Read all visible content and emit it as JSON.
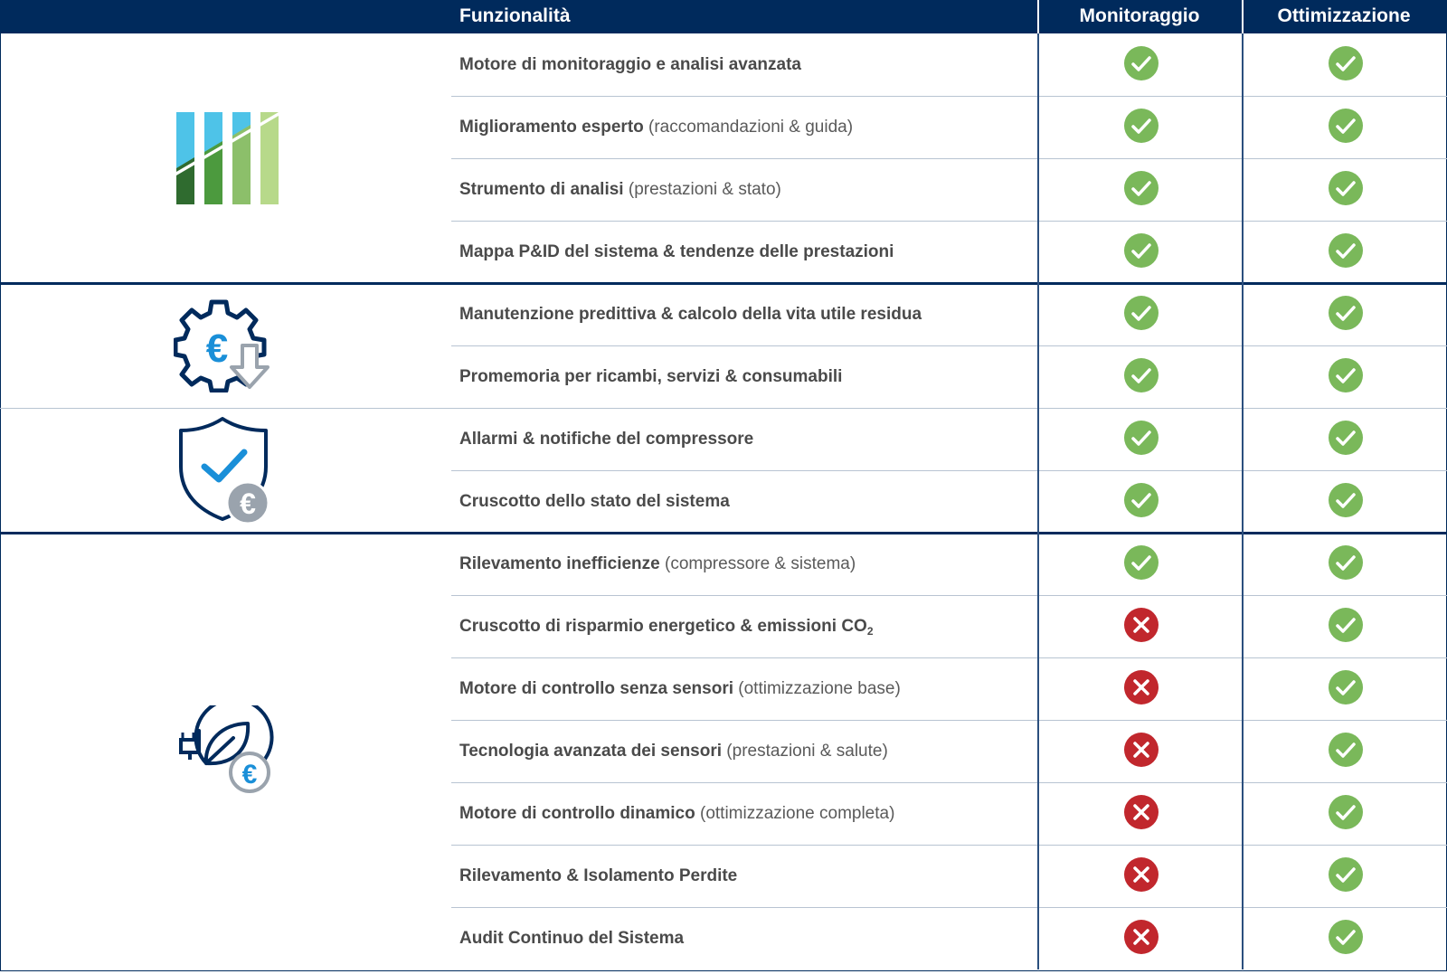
{
  "header": {
    "feature_col": "Funzionalità",
    "plan_a": "Monitoraggio",
    "plan_b": "Ottimizzazione"
  },
  "colors": {
    "header_bg": "#002a5c",
    "check": "#7ab85a",
    "cross": "#c1272d"
  },
  "groups": [
    {
      "icon": "bar-chart-icon"
    },
    {
      "icon": "gear-euro-down-icon"
    },
    {
      "icon": "shield-check-euro-icon"
    },
    {
      "icon": "leaf-plug-euro-icon"
    }
  ],
  "rows": [
    {
      "bold": "Motore di monitoraggio e analisi avanzata",
      "sub": "",
      "mon": "check",
      "opt": "check"
    },
    {
      "bold": "Miglioramento esperto",
      "sub": "(raccomandazioni & guida)",
      "mon": "check",
      "opt": "check"
    },
    {
      "bold": "Strumento di analisi",
      "sub": "(prestazioni & stato)",
      "mon": "check",
      "opt": "check"
    },
    {
      "bold": "Mappa P&ID del sistema & tendenze delle prestazioni",
      "sub": "",
      "mon": "check",
      "opt": "check"
    },
    {
      "bold": "Manutenzione predittiva & calcolo della vita utile residua",
      "sub": "",
      "mon": "check",
      "opt": "check"
    },
    {
      "bold": "Promemoria per ricambi, servizi & consumabili",
      "sub": "",
      "mon": "check",
      "opt": "check"
    },
    {
      "bold": "Allarmi & notifiche del compressore",
      "sub": "",
      "mon": "check",
      "opt": "check"
    },
    {
      "bold": "Cruscotto dello stato del sistema",
      "sub": "",
      "mon": "check",
      "opt": "check"
    },
    {
      "bold": "Rilevamento inefficienze",
      "sub": "(compressore & sistema)",
      "mon": "check",
      "opt": "check"
    },
    {
      "bold": "Cruscotto di risparmio energetico & emissioni CO",
      "subscript": "2",
      "sub": "",
      "mon": "cross",
      "opt": "check"
    },
    {
      "bold": "Motore di controllo senza sensori",
      "sub": "(ottimizzazione base)",
      "mon": "cross",
      "opt": "check"
    },
    {
      "bold": "Tecnologia avanzata dei sensori",
      "sub": "(prestazioni & salute)",
      "mon": "cross",
      "opt": "check"
    },
    {
      "bold": "Motore di controllo dinamico",
      "sub": "(ottimizzazione completa)",
      "mon": "cross",
      "opt": "check"
    },
    {
      "bold": "Rilevamento & Isolamento Perdite",
      "sub": "",
      "mon": "cross",
      "opt": "check"
    },
    {
      "bold": "Audit Continuo del Sistema",
      "sub": "",
      "mon": "cross",
      "opt": "check"
    }
  ]
}
